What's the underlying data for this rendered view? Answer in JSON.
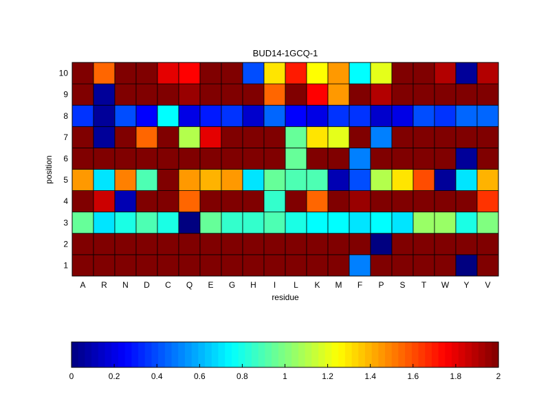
{
  "chart_data": {
    "type": "heatmap",
    "title": "BUD14-1GCQ-1",
    "xlabel": "residue",
    "ylabel": "position",
    "x_categories": [
      "A",
      "R",
      "N",
      "D",
      "C",
      "Q",
      "E",
      "G",
      "H",
      "I",
      "L",
      "K",
      "M",
      "F",
      "P",
      "S",
      "T",
      "W",
      "Y",
      "V"
    ],
    "y_categories": [
      1,
      2,
      3,
      4,
      5,
      6,
      7,
      8,
      9,
      10
    ],
    "colormap": "jet",
    "clim": [
      0,
      2
    ],
    "colorbar": {
      "placement": "bottom",
      "ticks": [
        "0",
        "0.2",
        "0.4",
        "0.6",
        "0.8",
        "1",
        "1.2",
        "1.4",
        "1.6",
        "1.8",
        "2"
      ]
    },
    "grid": false,
    "values": [
      [
        2.0,
        2.0,
        2.0,
        2.0,
        2.0,
        2.0,
        2.0,
        2.0,
        2.0,
        2.0,
        2.0,
        2.0,
        2.0,
        0.5,
        2.0,
        2.0,
        2.0,
        2.0,
        0.0,
        2.0
      ],
      [
        2.0,
        2.0,
        2.0,
        2.0,
        2.0,
        2.0,
        2.0,
        2.0,
        2.0,
        2.0,
        2.0,
        2.0,
        2.0,
        2.0,
        0.0,
        2.0,
        2.0,
        2.0,
        2.0,
        2.0
      ],
      [
        0.95,
        0.7,
        0.8,
        0.9,
        0.8,
        0.0,
        0.95,
        0.85,
        0.85,
        0.9,
        0.8,
        0.75,
        0.75,
        0.7,
        0.75,
        0.7,
        1.05,
        1.05,
        0.8,
        1.0
      ],
      [
        2.0,
        1.85,
        0.1,
        2.0,
        2.0,
        1.55,
        2.0,
        2.0,
        2.0,
        0.85,
        2.0,
        1.55,
        2.0,
        1.95,
        2.0,
        2.0,
        2.0,
        2.0,
        2.0,
        1.65
      ],
      [
        1.45,
        0.7,
        1.5,
        0.9,
        2.0,
        1.45,
        1.4,
        1.45,
        0.7,
        0.95,
        0.9,
        0.9,
        0.1,
        0.4,
        1.1,
        1.3,
        1.6,
        0.05,
        0.7,
        1.4
      ],
      [
        2.0,
        2.0,
        2.0,
        2.0,
        2.0,
        2.0,
        2.0,
        2.0,
        2.0,
        2.0,
        0.95,
        2.0,
        2.0,
        0.5,
        2.0,
        2.0,
        2.0,
        2.0,
        0.05,
        2.0
      ],
      [
        2.0,
        0.05,
        2.0,
        1.55,
        2.0,
        1.1,
        1.8,
        2.0,
        2.0,
        2.0,
        0.95,
        1.3,
        1.2,
        2.0,
        0.5,
        2.0,
        2.0,
        2.0,
        2.0,
        2.0
      ],
      [
        0.35,
        0.05,
        0.4,
        0.25,
        0.75,
        0.2,
        0.3,
        0.35,
        0.15,
        0.45,
        0.25,
        0.2,
        0.35,
        0.35,
        0.15,
        0.2,
        0.4,
        0.35,
        0.45,
        0.45
      ],
      [
        2.0,
        0.05,
        2.0,
        2.0,
        2.0,
        1.95,
        2.0,
        2.0,
        2.0,
        1.55,
        2.0,
        1.75,
        1.45,
        2.0,
        1.9,
        2.0,
        2.0,
        2.0,
        2.0,
        2.0
      ],
      [
        2.0,
        1.55,
        2.0,
        2.0,
        1.8,
        1.75,
        2.0,
        2.0,
        0.4,
        1.3,
        1.7,
        1.25,
        1.45,
        0.75,
        1.2,
        2.0,
        2.0,
        1.9,
        0.05,
        1.9
      ]
    ]
  }
}
